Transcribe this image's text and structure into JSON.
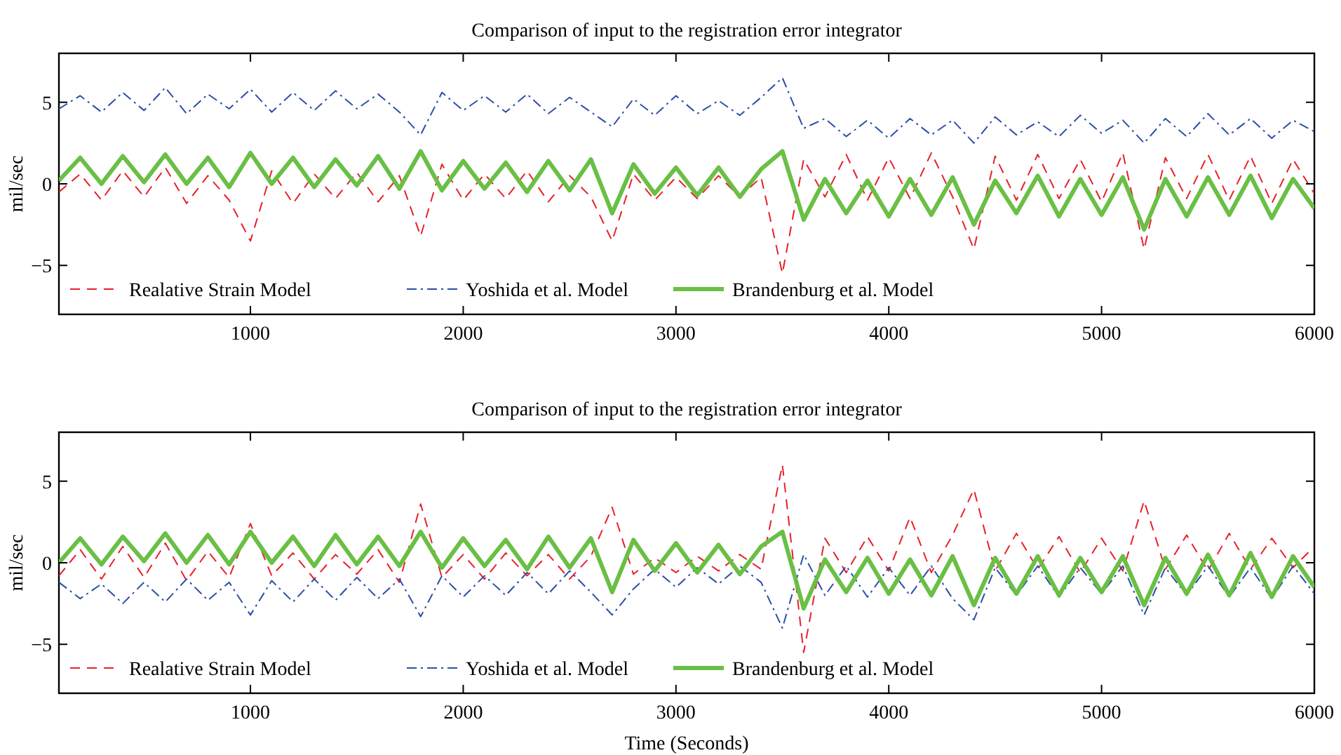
{
  "chart_data": [
    {
      "type": "line",
      "title": "Comparison of input to the registration error integrator",
      "ylabel": "mil/sec",
      "x": [
        100,
        200,
        300,
        400,
        500,
        600,
        700,
        800,
        900,
        1000,
        1100,
        1200,
        1300,
        1400,
        1500,
        1600,
        1700,
        1800,
        1900,
        2000,
        2100,
        2200,
        2300,
        2400,
        2500,
        2600,
        2700,
        2800,
        2900,
        3000,
        3100,
        3200,
        3300,
        3400,
        3500,
        3600,
        3700,
        3800,
        3900,
        4000,
        4100,
        4200,
        4300,
        4400,
        4500,
        4600,
        4700,
        4800,
        4900,
        5000,
        5100,
        5200,
        5300,
        5400,
        5500,
        5600,
        5700,
        5800,
        5900,
        6000
      ],
      "xlim": [
        100,
        6000
      ],
      "xticks": [
        1000,
        2000,
        3000,
        4000,
        5000,
        6000
      ],
      "ylim": [
        -8,
        8
      ],
      "yticks": [
        {
          "value": -5,
          "label": "−5"
        },
        {
          "value": 0,
          "label": "0"
        },
        {
          "value": 5,
          "label": "5"
        }
      ],
      "grid": false,
      "legend": "bottom left",
      "marker": "none",
      "series": [
        {
          "name": "Realative Strain Model",
          "color": "#e8202a",
          "line_style": "dashed",
          "values": [
            -0.5,
            0.6,
            -1.0,
            0.8,
            -0.8,
            1.0,
            -1.2,
            0.5,
            -1.0,
            -3.5,
            0.8,
            -1.2,
            0.6,
            -0.9,
            0.7,
            -1.1,
            0.5,
            -3.2,
            1.2,
            -1.0,
            0.6,
            -0.9,
            0.8,
            -1.1,
            0.5,
            -0.8,
            -3.5,
            0.6,
            -1.0,
            0.4,
            -0.9,
            0.5,
            -0.8,
            0.4,
            -5.5,
            1.5,
            -0.8,
            1.8,
            -1.0,
            1.6,
            -0.9,
            1.9,
            -0.8,
            -4.0,
            1.7,
            -1.0,
            1.8,
            -0.9,
            1.5,
            -1.1,
            1.9,
            -4.0,
            1.6,
            -0.9,
            1.8,
            -1.0,
            1.7,
            -1.2,
            1.5,
            -0.6
          ]
        },
        {
          "name": "Yoshida et al. Model",
          "color": "#2b4ea8",
          "line_style": "dotted",
          "values": [
            4.6,
            5.4,
            4.4,
            5.6,
            4.5,
            5.9,
            4.3,
            5.5,
            4.6,
            5.8,
            4.4,
            5.6,
            4.5,
            5.7,
            4.6,
            5.5,
            4.4,
            3.0,
            5.6,
            4.5,
            5.4,
            4.4,
            5.5,
            4.3,
            5.3,
            4.4,
            3.5,
            5.2,
            4.2,
            5.4,
            4.3,
            5.1,
            4.2,
            5.3,
            6.5,
            3.4,
            4.0,
            2.9,
            3.9,
            2.8,
            4.0,
            3.0,
            3.9,
            2.5,
            4.1,
            3.0,
            3.8,
            2.9,
            4.2,
            3.1,
            3.9,
            2.5,
            4.0,
            2.9,
            4.3,
            3.0,
            4.0,
            2.8,
            3.9,
            3.2
          ]
        },
        {
          "name": "Brandenburg et al. Model",
          "color": "#6abf45",
          "line_style": "solid",
          "values": [
            0.2,
            1.6,
            0.0,
            1.7,
            0.1,
            1.8,
            0.0,
            1.6,
            -0.2,
            1.9,
            0.0,
            1.6,
            -0.2,
            1.5,
            -0.1,
            1.7,
            -0.3,
            2.0,
            -0.4,
            1.4,
            -0.3,
            1.3,
            -0.5,
            1.4,
            -0.4,
            1.5,
            -1.8,
            1.2,
            -0.6,
            1.0,
            -0.7,
            1.0,
            -0.8,
            0.9,
            2.0,
            -2.2,
            0.3,
            -1.8,
            0.2,
            -2.0,
            0.3,
            -1.9,
            0.4,
            -2.5,
            0.2,
            -1.8,
            0.5,
            -2.0,
            0.3,
            -1.9,
            0.4,
            -2.8,
            0.3,
            -2.0,
            0.4,
            -1.9,
            0.5,
            -2.1,
            0.3,
            -1.5
          ]
        }
      ]
    },
    {
      "type": "line",
      "title": "Comparison of input to the registration error integrator",
      "ylabel": "mil/sec",
      "xlabel": "Time (Seconds)",
      "x": [
        100,
        200,
        300,
        400,
        500,
        600,
        700,
        800,
        900,
        1000,
        1100,
        1200,
        1300,
        1400,
        1500,
        1600,
        1700,
        1800,
        1900,
        2000,
        2100,
        2200,
        2300,
        2400,
        2500,
        2600,
        2700,
        2800,
        2900,
        3000,
        3100,
        3200,
        3300,
        3400,
        3500,
        3600,
        3700,
        3800,
        3900,
        4000,
        4100,
        4200,
        4300,
        4400,
        4500,
        4600,
        4700,
        4800,
        4900,
        5000,
        5100,
        5200,
        5300,
        5400,
        5500,
        5600,
        5700,
        5800,
        5900,
        6000
      ],
      "xlim": [
        100,
        6000
      ],
      "xticks": [
        1000,
        2000,
        3000,
        4000,
        5000,
        6000
      ],
      "ylim": [
        -8,
        8
      ],
      "yticks": [
        {
          "value": -5,
          "label": "−5"
        },
        {
          "value": 0,
          "label": "0"
        },
        {
          "value": 5,
          "label": "5"
        }
      ],
      "grid": false,
      "legend": "bottom left",
      "marker": "none",
      "series": [
        {
          "name": "Realative Strain Model",
          "color": "#e8202a",
          "line_style": "dashed",
          "values": [
            -0.8,
            0.8,
            -1.0,
            1.0,
            -0.9,
            1.2,
            -1.1,
            0.7,
            -0.9,
            2.4,
            -0.8,
            0.6,
            -1.0,
            0.5,
            -0.7,
            0.8,
            -1.2,
            3.6,
            -0.9,
            0.5,
            -1.0,
            0.6,
            -0.8,
            0.5,
            -1.0,
            0.4,
            3.4,
            -0.7,
            0.3,
            -0.6,
            0.4,
            -0.5,
            0.5,
            -0.4,
            6.0,
            -5.5,
            1.5,
            -0.6,
            1.6,
            -0.5,
            2.8,
            -0.6,
            1.7,
            4.5,
            -0.5,
            1.8,
            -0.4,
            1.6,
            -0.6,
            1.5,
            -0.5,
            3.8,
            -0.4,
            1.7,
            -0.5,
            1.8,
            -0.4,
            1.5,
            -0.3,
            1.0
          ]
        },
        {
          "name": "Yoshida et al. Model",
          "color": "#2b4ea8",
          "line_style": "dotted",
          "values": [
            -1.2,
            -2.2,
            -1.3,
            -2.5,
            -1.2,
            -2.4,
            -1.0,
            -2.3,
            -1.2,
            -3.2,
            -1.1,
            -2.4,
            -1.0,
            -2.3,
            -0.9,
            -2.2,
            -1.0,
            -3.3,
            -0.8,
            -2.1,
            -0.8,
            -2.0,
            -0.6,
            -1.9,
            -0.5,
            -1.8,
            -3.2,
            -1.6,
            -0.4,
            -1.5,
            -0.3,
            -1.3,
            -0.2,
            -1.2,
            -4.0,
            0.5,
            -2.0,
            -0.2,
            -2.1,
            -0.3,
            -2.0,
            -0.2,
            -2.2,
            -3.5,
            -0.3,
            -2.0,
            -0.2,
            -2.1,
            -0.3,
            -1.9,
            -0.2,
            -3.2,
            -0.3,
            -2.0,
            -0.2,
            -2.1,
            -0.3,
            -2.2,
            -0.2,
            -1.9
          ]
        },
        {
          "name": "Brandenburg et al. Model",
          "color": "#6abf45",
          "line_style": "solid",
          "values": [
            0.0,
            1.5,
            -0.1,
            1.6,
            0.1,
            1.8,
            0.0,
            1.7,
            -0.1,
            1.9,
            0.0,
            1.6,
            -0.2,
            1.7,
            -0.1,
            1.6,
            -0.2,
            1.9,
            -0.3,
            1.5,
            -0.2,
            1.4,
            -0.4,
            1.6,
            -0.3,
            1.5,
            -1.8,
            1.4,
            -0.5,
            1.2,
            -0.6,
            1.1,
            -0.7,
            1.0,
            1.9,
            -2.8,
            0.2,
            -1.8,
            0.3,
            -1.9,
            0.2,
            -2.0,
            0.4,
            -2.6,
            0.3,
            -1.9,
            0.4,
            -2.0,
            0.3,
            -1.8,
            0.4,
            -2.6,
            0.3,
            -1.9,
            0.5,
            -2.0,
            0.6,
            -2.1,
            0.4,
            -1.5
          ]
        }
      ]
    }
  ]
}
